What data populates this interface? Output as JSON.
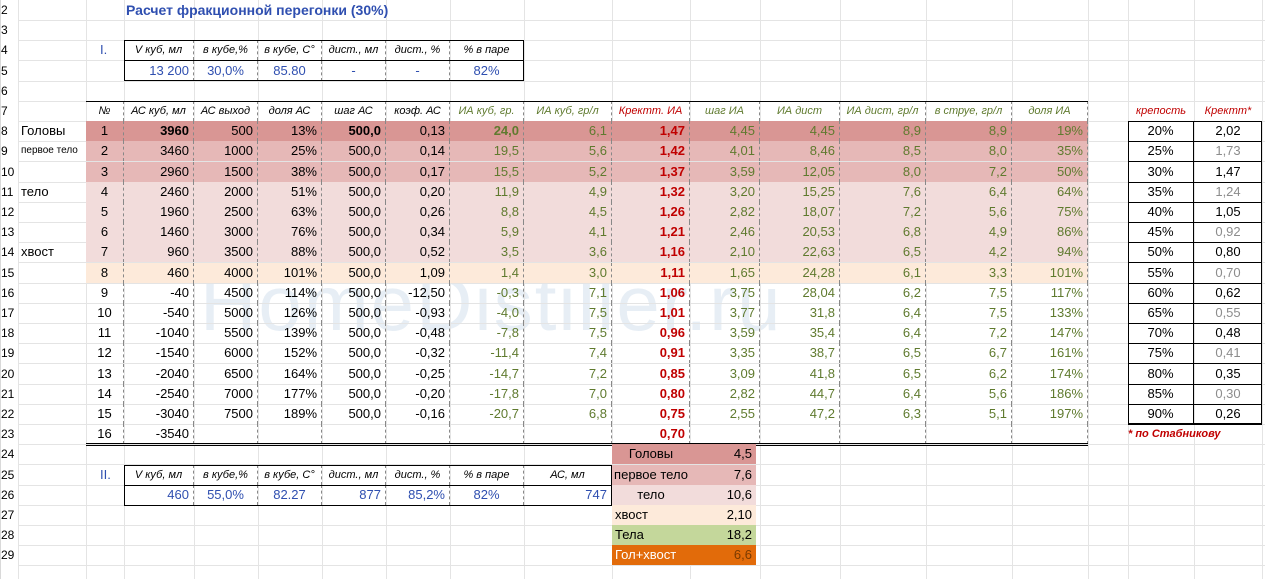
{
  "title": "Расчет фракционной перегонки (30%)",
  "watermark": "HomeDistiller.ru",
  "section1": {
    "label": "I.",
    "headers": [
      "V куб, мл",
      "в кубе,%",
      "в кубе, С°",
      "дист., мл",
      "дист., %",
      "% в паре"
    ],
    "values": [
      "13 200",
      "30,0%",
      "85.80",
      "-",
      "-",
      "82%"
    ]
  },
  "section2": {
    "label": "II.",
    "headers": [
      "V куб, мл",
      "в кубе,%",
      "в кубе, С°",
      "дист., мл",
      "дист., %",
      "% в паре",
      "АС, мл"
    ],
    "values": [
      "460",
      "55,0%",
      "82.27",
      "877",
      "85,2%",
      "82%",
      "747"
    ]
  },
  "main": {
    "headers": [
      "№",
      "АС куб, мл",
      "АС выход",
      "доля АС",
      "шаг АС",
      "коэф. АС",
      "ИА куб, гр.",
      "ИА куб, гр/л",
      "КректИА",
      "шаг ИА",
      "ИА дист",
      "ИА дист, гр/л",
      "в струе, гр/л",
      "доля ИА"
    ],
    "header_kr": "Кректт. ИА",
    "rows": [
      [
        "1",
        "3960",
        "500",
        "13%",
        "500,0",
        "0,13",
        "24,0",
        "6,1",
        "1,47",
        "4,45",
        "4,45",
        "8,9",
        "8,9",
        "19%"
      ],
      [
        "2",
        "3460",
        "1000",
        "25%",
        "500,0",
        "0,14",
        "19,5",
        "5,6",
        "1,42",
        "4,01",
        "8,46",
        "8,5",
        "8,0",
        "35%"
      ],
      [
        "3",
        "2960",
        "1500",
        "38%",
        "500,0",
        "0,17",
        "15,5",
        "5,2",
        "1,37",
        "3,59",
        "12,05",
        "8,0",
        "7,2",
        "50%"
      ],
      [
        "4",
        "2460",
        "2000",
        "51%",
        "500,0",
        "0,20",
        "11,9",
        "4,9",
        "1,32",
        "3,20",
        "15,25",
        "7,6",
        "6,4",
        "64%"
      ],
      [
        "5",
        "1960",
        "2500",
        "63%",
        "500,0",
        "0,26",
        "8,8",
        "4,5",
        "1,26",
        "2,82",
        "18,07",
        "7,2",
        "5,6",
        "75%"
      ],
      [
        "6",
        "1460",
        "3000",
        "76%",
        "500,0",
        "0,34",
        "5,9",
        "4,1",
        "1,21",
        "2,46",
        "20,53",
        "6,8",
        "4,9",
        "86%"
      ],
      [
        "7",
        "960",
        "3500",
        "88%",
        "500,0",
        "0,52",
        "3,5",
        "3,6",
        "1,16",
        "2,10",
        "22,63",
        "6,5",
        "4,2",
        "94%"
      ],
      [
        "8",
        "460",
        "4000",
        "101%",
        "500,0",
        "1,09",
        "1,4",
        "3,0",
        "1,11",
        "1,65",
        "24,28",
        "6,1",
        "3,3",
        "101%"
      ],
      [
        "9",
        "-40",
        "4500",
        "114%",
        "500,0",
        "-12,50",
        "-0,3",
        "7,1",
        "1,06",
        "3,75",
        "28,04",
        "6,2",
        "7,5",
        "117%"
      ],
      [
        "10",
        "-540",
        "5000",
        "126%",
        "500,0",
        "-0,93",
        "-4,0",
        "7,5",
        "1,01",
        "3,77",
        "31,8",
        "6,4",
        "7,5",
        "133%"
      ],
      [
        "11",
        "-1040",
        "5500",
        "139%",
        "500,0",
        "-0,48",
        "-7,8",
        "7,5",
        "0,96",
        "3,59",
        "35,4",
        "6,4",
        "7,2",
        "147%"
      ],
      [
        "12",
        "-1540",
        "6000",
        "152%",
        "500,0",
        "-0,32",
        "-11,4",
        "7,4",
        "0,91",
        "3,35",
        "38,7",
        "6,5",
        "6,7",
        "161%"
      ],
      [
        "13",
        "-2040",
        "6500",
        "164%",
        "500,0",
        "-0,25",
        "-14,7",
        "7,2",
        "0,85",
        "3,09",
        "41,8",
        "6,5",
        "6,2",
        "174%"
      ],
      [
        "14",
        "-2540",
        "7000",
        "177%",
        "500,0",
        "-0,20",
        "-17,8",
        "7,0",
        "0,80",
        "2,82",
        "44,7",
        "6,4",
        "5,6",
        "186%"
      ],
      [
        "15",
        "-3040",
        "7500",
        "189%",
        "500,0",
        "-0,16",
        "-20,7",
        "6,8",
        "0,75",
        "2,55",
        "47,2",
        "6,3",
        "5,1",
        "197%"
      ],
      [
        "16",
        "-3540",
        "",
        "",
        "",
        "",
        "",
        "",
        "0,70",
        "",
        "",
        "",
        "",
        ""
      ]
    ],
    "row_labels": [
      "Головы",
      "первое тело",
      "",
      "тело",
      "",
      "",
      "хвост",
      "",
      "",
      "",
      "",
      "",
      "",
      "",
      "",
      ""
    ],
    "row_colors": [
      "#d99694",
      "#e6b8b7",
      "#e6b8b7",
      "#f2dcdb",
      "#f2dcdb",
      "#f2dcdb",
      "#f2dcdb",
      "#fdeada",
      "",
      "",
      "",
      "",
      "",
      "",
      "",
      ""
    ]
  },
  "side": {
    "headers": [
      "крепость",
      "Кректт*"
    ],
    "rows": [
      [
        "20%",
        "2,02"
      ],
      [
        "25%",
        "1,73"
      ],
      [
        "30%",
        "1,47"
      ],
      [
        "35%",
        "1,24"
      ],
      [
        "40%",
        "1,05"
      ],
      [
        "45%",
        "0,92"
      ],
      [
        "50%",
        "0,80"
      ],
      [
        "55%",
        "0,70"
      ],
      [
        "60%",
        "0,62"
      ],
      [
        "65%",
        "0,55"
      ],
      [
        "70%",
        "0,48"
      ],
      [
        "75%",
        "0,41"
      ],
      [
        "80%",
        "0,35"
      ],
      [
        "85%",
        "0,30"
      ],
      [
        "90%",
        "0,26"
      ]
    ],
    "note": "* по Стабникову"
  },
  "summary": [
    {
      "label": "Головы",
      "value": "4,5",
      "color": "#d99694"
    },
    {
      "label": "первое тело",
      "value": "7,6",
      "color": "#e6b8b7"
    },
    {
      "label": "тело",
      "value": "10,6",
      "color": "#f2dcdb"
    },
    {
      "label": "хвост",
      "value": "2,10",
      "color": "#fdeada"
    },
    {
      "label": "Тела",
      "value": "18,2",
      "color": "#c4d79b"
    },
    {
      "label": "Гол+хвост",
      "value": "6,6",
      "color": "#e26b0a"
    }
  ],
  "row_numbers": [
    "2",
    "3",
    "4",
    "5",
    "6",
    "7",
    "8",
    "9",
    "10",
    "11",
    "12",
    "13",
    "14",
    "15",
    "16",
    "17",
    "18",
    "19",
    "20",
    "21",
    "22",
    "23",
    "24",
    "25",
    "26",
    "27",
    "28",
    "29"
  ]
}
